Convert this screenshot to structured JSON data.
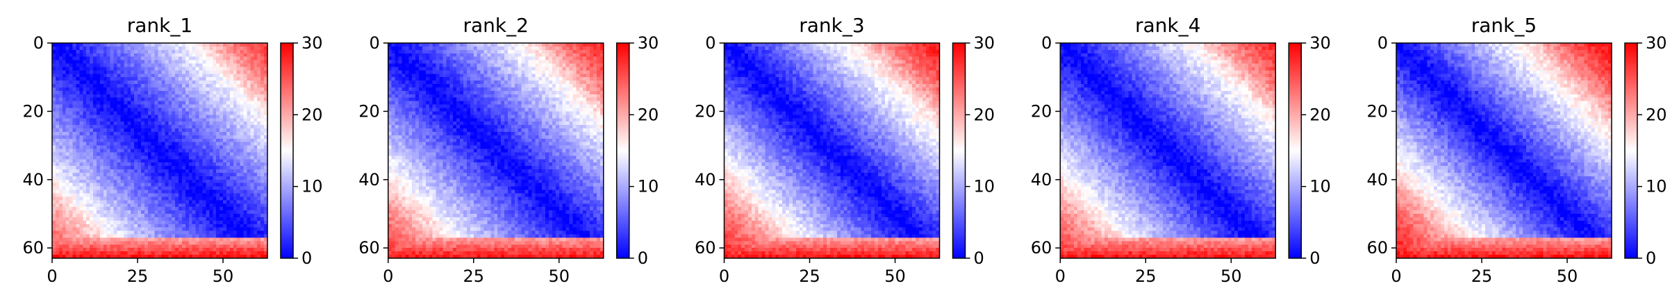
{
  "chart_data": {
    "type": "heatmap",
    "colormap": [
      "#0000ff",
      "#ffffff",
      "#ff0000"
    ],
    "colorbar": {
      "min": 0,
      "max": 30,
      "ticks": [
        0,
        10,
        20,
        30
      ]
    },
    "matrix_size": 63,
    "x_ticks": [
      0,
      25,
      50
    ],
    "y_ticks": [
      0,
      20,
      40,
      60
    ],
    "grid": false,
    "panels": [
      {
        "title": "rank_1",
        "diagonal_value": 0,
        "slope": 0.37,
        "corner_value": 30,
        "bottom_band_value": 30
      },
      {
        "title": "rank_2",
        "diagonal_value": 0,
        "slope": 0.4,
        "corner_value": 30,
        "bottom_band_value": 30
      },
      {
        "title": "rank_3",
        "diagonal_value": 0,
        "slope": 0.43,
        "corner_value": 30,
        "bottom_band_value": 30
      },
      {
        "title": "rank_4",
        "diagonal_value": 0,
        "slope": 0.4,
        "corner_value": 30,
        "bottom_band_value": 30
      },
      {
        "title": "rank_5",
        "diagonal_value": 0,
        "slope": 0.45,
        "corner_value": 30,
        "bottom_band_value": 30
      }
    ]
  }
}
